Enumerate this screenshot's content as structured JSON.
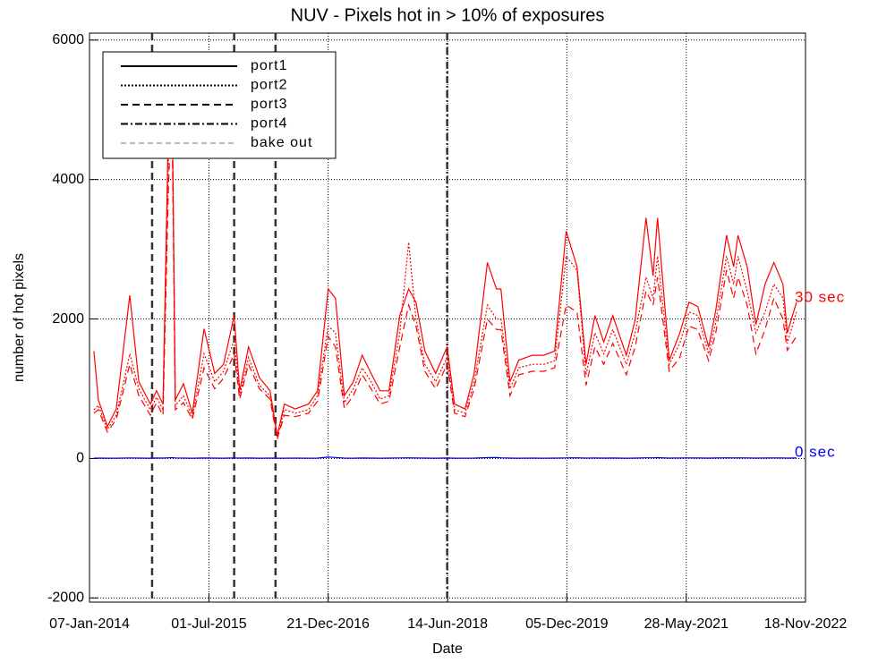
{
  "chart_data": {
    "type": "line",
    "title": "NUV - Pixels hot in > 10% of exposures",
    "xlabel": "Date",
    "ylabel": "number of hot pixels",
    "xlim": [
      "2014-01-07",
      "2022-11-18"
    ],
    "xticks": [
      {
        "value": "2014-01-07",
        "label": "07-Jan-2014"
      },
      {
        "value": "2015-07-01",
        "label": "01-Jul-2015"
      },
      {
        "value": "2016-12-21",
        "label": "21-Dec-2016"
      },
      {
        "value": "2018-06-14",
        "label": "14-Jun-2018"
      },
      {
        "value": "2019-12-05",
        "label": "05-Dec-2019"
      },
      {
        "value": "2021-05-28",
        "label": "28-May-2021"
      },
      {
        "value": "2022-11-18",
        "label": "18-Nov-2022"
      }
    ],
    "ylim": [
      -2060,
      6100
    ],
    "yticks": [
      -2000,
      0,
      2000,
      4000,
      6000
    ],
    "grid": true,
    "x": [
      "2014-01-27",
      "2014-02-16",
      "2014-03-29",
      "2014-05-08",
      "2014-07-08",
      "2014-08-18",
      "2014-10-09",
      "2014-11-06",
      "2014-12-05",
      "2014-12-29",
      "2015-01-14",
      "2015-01-30",
      "2015-03-08",
      "2015-04-17",
      "2015-06-09",
      "2015-07-27",
      "2015-09-05",
      "2015-10-23",
      "2015-11-17",
      "2015-12-27",
      "2016-02-14",
      "2016-04-02",
      "2016-05-05",
      "2016-06-06",
      "2016-07-25",
      "2016-09-23",
      "2016-11-03",
      "2016-12-21",
      "2017-01-23",
      "2017-03-04",
      "2017-04-14",
      "2017-05-24",
      "2017-07-03",
      "2017-08-13",
      "2017-09-22",
      "2017-11-10",
      "2017-12-20",
      "2018-01-22",
      "2018-03-03",
      "2018-04-21",
      "2018-06-12",
      "2018-07-15",
      "2018-09-01",
      "2018-10-12",
      "2018-12-11",
      "2019-01-21",
      "2019-02-10",
      "2019-03-23",
      "2019-05-02",
      "2019-07-02",
      "2019-08-23",
      "2019-10-11",
      "2019-12-02",
      "2020-01-20",
      "2020-03-01",
      "2020-04-10",
      "2020-05-20",
      "2020-06-30",
      "2020-08-30",
      "2020-10-09",
      "2020-11-27",
      "2020-12-29",
      "2021-01-18",
      "2021-03-12",
      "2021-04-29",
      "2021-06-09",
      "2021-07-19",
      "2021-09-06",
      "2021-10-08",
      "2021-11-26",
      "2021-12-28",
      "2022-01-17",
      "2022-02-27",
      "2022-04-08",
      "2022-05-19",
      "2022-06-28",
      "2022-08-08",
      "2022-08-28",
      "2022-10-08"
    ],
    "series": [
      {
        "name": "port1",
        "color": "#ff0000",
        "dash": "none",
        "values": [
          1540,
          840,
          460,
          710,
          2340,
          1100,
          780,
          970,
          780,
          4660,
          5800,
          840,
          1070,
          650,
          1860,
          1220,
          1350,
          2050,
          970,
          1600,
          1160,
          970,
          330,
          780,
          710,
          780,
          970,
          2430,
          2300,
          900,
          1100,
          1480,
          1220,
          970,
          970,
          2050,
          2430,
          2240,
          1540,
          1220,
          1600,
          780,
          710,
          1220,
          2810,
          2430,
          2430,
          1100,
          1410,
          1480,
          1480,
          1540,
          3260,
          2750,
          1350,
          2050,
          1670,
          2050,
          1480,
          1990,
          3450,
          2620,
          3450,
          1410,
          1800,
          2240,
          2180,
          1600,
          2120,
          3200,
          2750,
          3200,
          2750,
          1920,
          2500,
          2810,
          2500,
          1800,
          2240
        ]
      },
      {
        "name": "port2",
        "color": "#ff0000",
        "dash": "2,2",
        "values": [
          700,
          760,
          420,
          620,
          1500,
          1000,
          700,
          880,
          700,
          4200,
          5500,
          760,
          900,
          600,
          1500,
          1100,
          1250,
          1700,
          900,
          1450,
          1050,
          900,
          300,
          700,
          650,
          700,
          900,
          1900,
          1800,
          800,
          1000,
          1300,
          1100,
          850,
          900,
          1800,
          3100,
          2000,
          1350,
          1100,
          1450,
          700,
          650,
          1100,
          2200,
          2000,
          2000,
          1000,
          1300,
          1350,
          1350,
          1400,
          2900,
          2700,
          1200,
          1800,
          1500,
          1850,
          1350,
          1800,
          2600,
          2300,
          2900,
          1350,
          1650,
          2100,
          2050,
          1500,
          1950,
          2900,
          2500,
          2900,
          2400,
          1800,
          2100,
          2500,
          2300,
          1650,
          2100
        ]
      },
      {
        "name": "port3",
        "color": "#ff0000",
        "dash": "8,5",
        "values": [
          650,
          700,
          380,
          560,
          1350,
          900,
          620,
          800,
          620,
          3800,
          5200,
          700,
          800,
          560,
          1300,
          1000,
          1150,
          1500,
          850,
          1350,
          1000,
          850,
          280,
          620,
          600,
          650,
          820,
          1750,
          1600,
          720,
          900,
          1200,
          1000,
          780,
          820,
          1600,
          2200,
          1900,
          1250,
          1000,
          1350,
          650,
          600,
          1000,
          2000,
          1850,
          1850,
          900,
          1200,
          1250,
          1250,
          1300,
          2200,
          2100,
          1050,
          1600,
          1350,
          1650,
          1200,
          1600,
          2400,
          2200,
          2600,
          1250,
          1450,
          1900,
          1850,
          1400,
          1800,
          2700,
          2300,
          2600,
          2200,
          1500,
          1850,
          2300,
          2000,
          1550,
          1750
        ]
      },
      {
        "color": "#0000ff",
        "dash": "none",
        "values": [
          5,
          6,
          4,
          5,
          8,
          6,
          5,
          7,
          6,
          10,
          12,
          8,
          6,
          5,
          7,
          6,
          5,
          8,
          6,
          7,
          5,
          6,
          4,
          5,
          6,
          5,
          6,
          20,
          15,
          6,
          5,
          7,
          6,
          5,
          6,
          8,
          9,
          7,
          6,
          5,
          7,
          5,
          4,
          6,
          12,
          14,
          10,
          6,
          5,
          6,
          5,
          6,
          8,
          9,
          6,
          7,
          6,
          7,
          5,
          6,
          10,
          9,
          12,
          6,
          7,
          8,
          7,
          6,
          7,
          9,
          8,
          9,
          8,
          6,
          7,
          8,
          7,
          6,
          7
        ]
      }
    ],
    "events": [
      {
        "x": "2014-10-17",
        "dash": "8,5",
        "color": "#333333"
      },
      {
        "x": "2015-10-23",
        "dash": "8,5",
        "color": "#333333"
      },
      {
        "x": "2016-04-27",
        "dash": "8,5",
        "color": "#333333"
      },
      {
        "x": "2018-06-12",
        "dash": "8,3,2,3",
        "color": "#333333"
      }
    ],
    "legend": {
      "position": "upper left",
      "entries": [
        {
          "name": "port1",
          "dash": "none",
          "color": "#000000"
        },
        {
          "name": "port2",
          "dash": "2,2",
          "color": "#000000"
        },
        {
          "name": "port3",
          "dash": "8,5",
          "color": "#000000"
        },
        {
          "name": "port4",
          "dash": "8,3,2,3",
          "color": "#000000"
        },
        {
          "name": "bake out",
          "dash": "6,4",
          "color": "#777777"
        }
      ]
    },
    "annotations": [
      {
        "text": "30 sec",
        "y": 2300,
        "color": "#ff0000"
      },
      {
        "text": "0 sec",
        "y": 80,
        "color": "#0000ff"
      }
    ]
  }
}
